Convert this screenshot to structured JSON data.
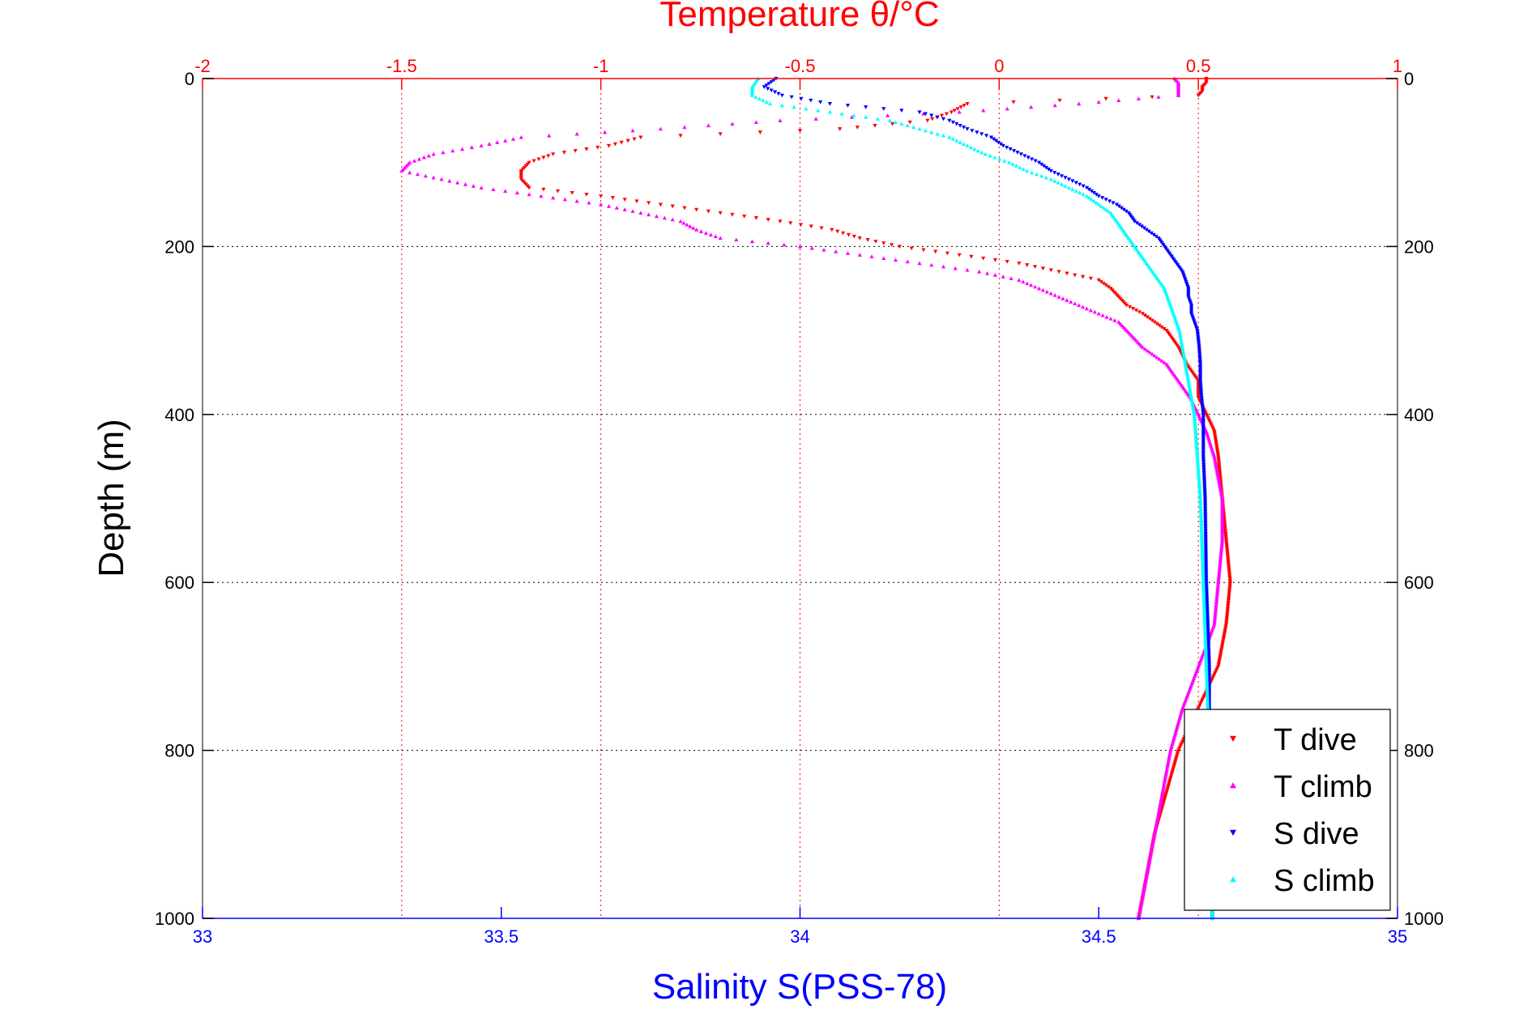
{
  "chart_data": {
    "type": "scatter",
    "title": "",
    "top_axis": {
      "label": "Temperature θ/°C",
      "range": [
        -2,
        1
      ],
      "ticks": [
        "-2",
        "-1.5",
        "-1",
        "-0.5",
        "0",
        "0.5",
        "1"
      ],
      "color": "#ff0000"
    },
    "bottom_axis": {
      "label": "Salinity S(PSS-78)",
      "range": [
        33,
        35
      ],
      "ticks": [
        "33",
        "33.5",
        "34",
        "34.5",
        "35"
      ],
      "color": "#0000ff"
    },
    "y_axis": {
      "label": "Depth (m)",
      "range": [
        0,
        1000
      ],
      "ticks": [
        "0",
        "200",
        "400",
        "600",
        "800",
        "1000"
      ],
      "reversed": true
    },
    "grid": "temperature-x and depth-y dotted",
    "legend_position": "bottom-right",
    "series": [
      {
        "name": "T dive",
        "axis": "temperature",
        "color": "#ff0000",
        "marker": "triangle-down",
        "depth": [
          0,
          5,
          10,
          15,
          20,
          30,
          40,
          50,
          60,
          70,
          80,
          90,
          100,
          110,
          120,
          130,
          140,
          150,
          160,
          170,
          180,
          190,
          200,
          210,
          220,
          230,
          240,
          250,
          260,
          270,
          280,
          300,
          320,
          340,
          360,
          380,
          400,
          420,
          450,
          500,
          550,
          600,
          650,
          700,
          750,
          800,
          850,
          900,
          950,
          1000
        ],
        "values": [
          0.52,
          0.52,
          0.51,
          0.51,
          0.5,
          -0.08,
          -0.12,
          -0.18,
          -0.4,
          -0.9,
          -0.98,
          -1.12,
          -1.18,
          -1.2,
          -1.2,
          -1.18,
          -1.0,
          -0.85,
          -0.7,
          -0.55,
          -0.42,
          -0.35,
          -0.25,
          -0.1,
          0.05,
          0.15,
          0.25,
          0.28,
          0.3,
          0.32,
          0.36,
          0.42,
          0.45,
          0.47,
          0.5,
          0.5,
          0.52,
          0.54,
          0.55,
          0.56,
          0.57,
          0.58,
          0.57,
          0.55,
          0.5,
          0.45,
          0.42,
          0.39,
          0.37,
          0.35
        ]
      },
      {
        "name": "T climb",
        "axis": "temperature",
        "color": "#ff00ff",
        "marker": "triangle-up",
        "depth": [
          0,
          5,
          10,
          15,
          20,
          30,
          40,
          50,
          60,
          70,
          80,
          90,
          100,
          110,
          120,
          130,
          140,
          150,
          160,
          170,
          180,
          190,
          200,
          210,
          220,
          230,
          240,
          250,
          260,
          270,
          280,
          290,
          300,
          320,
          340,
          360,
          380,
          400,
          420,
          450,
          500,
          550,
          600,
          650,
          700,
          750,
          800,
          850,
          900,
          950,
          1000
        ],
        "values": [
          0.44,
          0.45,
          0.45,
          0.45,
          0.45,
          0.2,
          -0.1,
          -0.55,
          -0.85,
          -1.2,
          -1.3,
          -1.42,
          -1.48,
          -1.5,
          -1.4,
          -1.3,
          -1.15,
          -1.0,
          -0.9,
          -0.8,
          -0.76,
          -0.7,
          -0.5,
          -0.35,
          -0.2,
          -0.05,
          0.05,
          0.1,
          0.15,
          0.2,
          0.25,
          0.3,
          0.32,
          0.36,
          0.42,
          0.45,
          0.48,
          0.5,
          0.52,
          0.54,
          0.56,
          0.56,
          0.55,
          0.54,
          0.5,
          0.46,
          0.43,
          0.41,
          0.39,
          0.37,
          0.35
        ]
      },
      {
        "name": "S dive",
        "axis": "salinity",
        "color": "#0000ff",
        "marker": "triangle-down",
        "depth": [
          0,
          10,
          20,
          30,
          40,
          50,
          60,
          70,
          80,
          90,
          100,
          110,
          120,
          130,
          140,
          150,
          160,
          170,
          180,
          190,
          200,
          210,
          220,
          230,
          240,
          250,
          260,
          270,
          280,
          290,
          300,
          320,
          340,
          360,
          380,
          400,
          450,
          500,
          600,
          700,
          800,
          900,
          1000
        ],
        "values": [
          33.96,
          33.94,
          33.97,
          34.05,
          34.2,
          34.25,
          34.28,
          34.32,
          34.34,
          34.37,
          34.4,
          34.42,
          34.45,
          34.48,
          34.5,
          34.53,
          34.55,
          34.56,
          34.58,
          34.6,
          34.61,
          34.62,
          34.63,
          34.64,
          34.645,
          34.65,
          34.65,
          34.655,
          34.655,
          34.66,
          34.665,
          34.668,
          34.67,
          34.67,
          34.672,
          34.675,
          34.675,
          34.678,
          34.68,
          34.685,
          34.685,
          34.69,
          34.69
        ]
      },
      {
        "name": "S climb",
        "axis": "salinity",
        "color": "#00ffff",
        "marker": "triangle-up",
        "depth": [
          0,
          10,
          20,
          30,
          40,
          50,
          60,
          70,
          80,
          90,
          100,
          110,
          120,
          130,
          140,
          150,
          160,
          170,
          180,
          190,
          200,
          210,
          220,
          230,
          240,
          250,
          260,
          270,
          280,
          290,
          300,
          320,
          340,
          360,
          380,
          400,
          450,
          500,
          600,
          700,
          800,
          900,
          1000
        ],
        "values": [
          33.93,
          33.92,
          33.92,
          33.95,
          34.05,
          34.15,
          34.2,
          34.25,
          34.28,
          34.31,
          34.35,
          34.38,
          34.42,
          34.45,
          34.48,
          34.5,
          34.52,
          34.53,
          34.54,
          34.55,
          34.56,
          34.57,
          34.58,
          34.59,
          34.6,
          34.61,
          34.615,
          34.62,
          34.625,
          34.63,
          34.635,
          34.64,
          34.645,
          34.65,
          34.655,
          34.66,
          34.665,
          34.67,
          34.675,
          34.68,
          34.685,
          34.69,
          34.69
        ]
      }
    ]
  }
}
